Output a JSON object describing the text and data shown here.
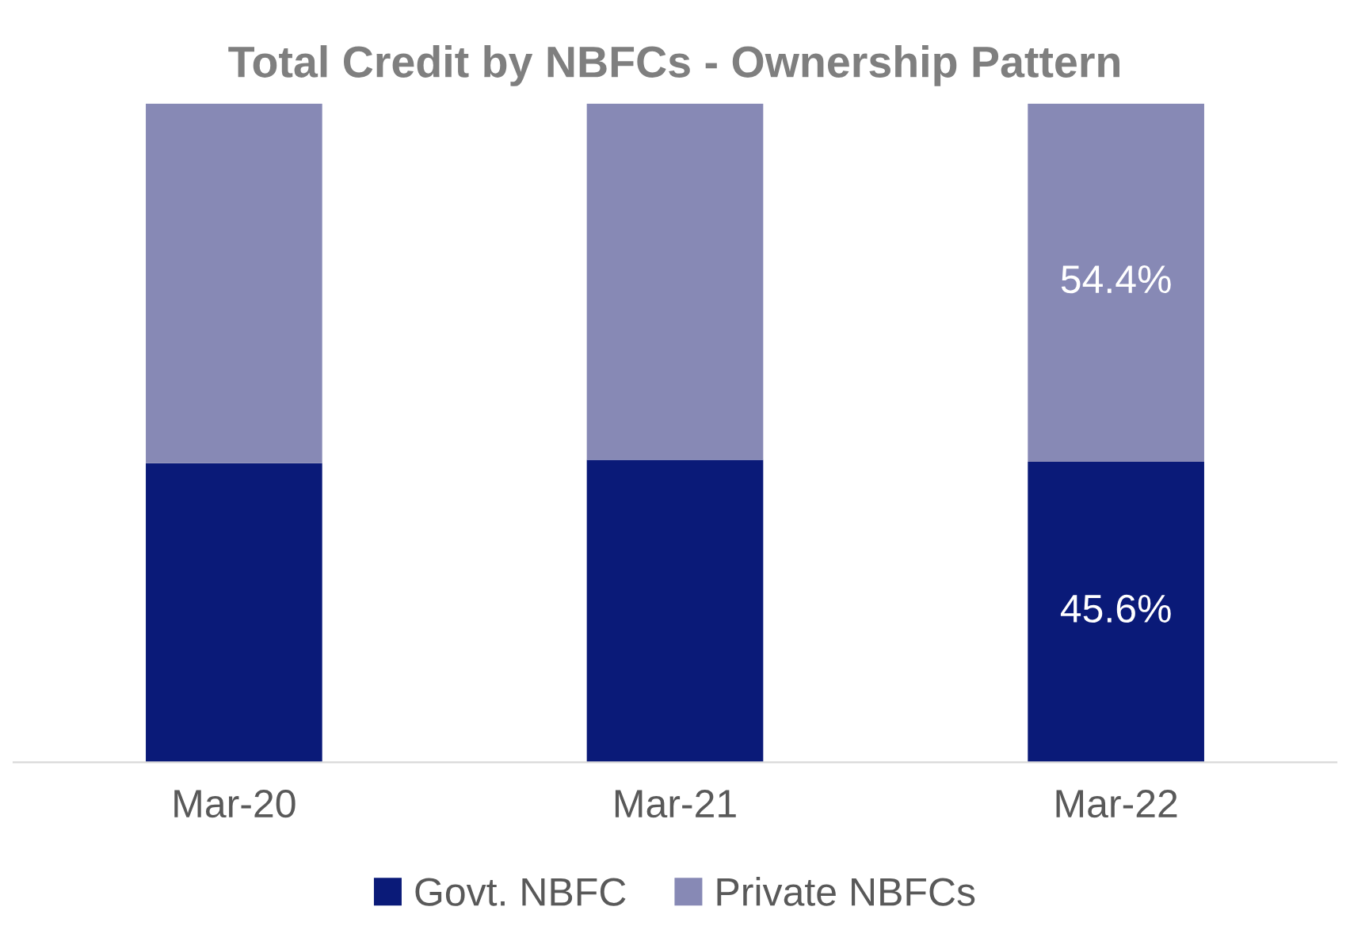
{
  "chart_data": {
    "type": "bar",
    "title": "Total Credit by NBFCs - Ownership Pattern",
    "categories": [
      "Mar-20",
      "Mar-21",
      "Mar-22"
    ],
    "stacked": true,
    "ylim": [
      0,
      100
    ],
    "tick_labels": "x",
    "legend": "bottom",
    "grid": false,
    "series": [
      {
        "name": "Govt. NBFC",
        "color": "#0a1a78",
        "values": [
          45.4,
          45.9,
          45.6
        ],
        "value_labels": [
          null,
          null,
          "45.6%"
        ]
      },
      {
        "name": "Private NBFCs",
        "color": "#8789b5",
        "values": [
          54.6,
          54.1,
          54.4
        ],
        "value_labels": [
          null,
          null,
          "54.4%"
        ]
      }
    ]
  }
}
